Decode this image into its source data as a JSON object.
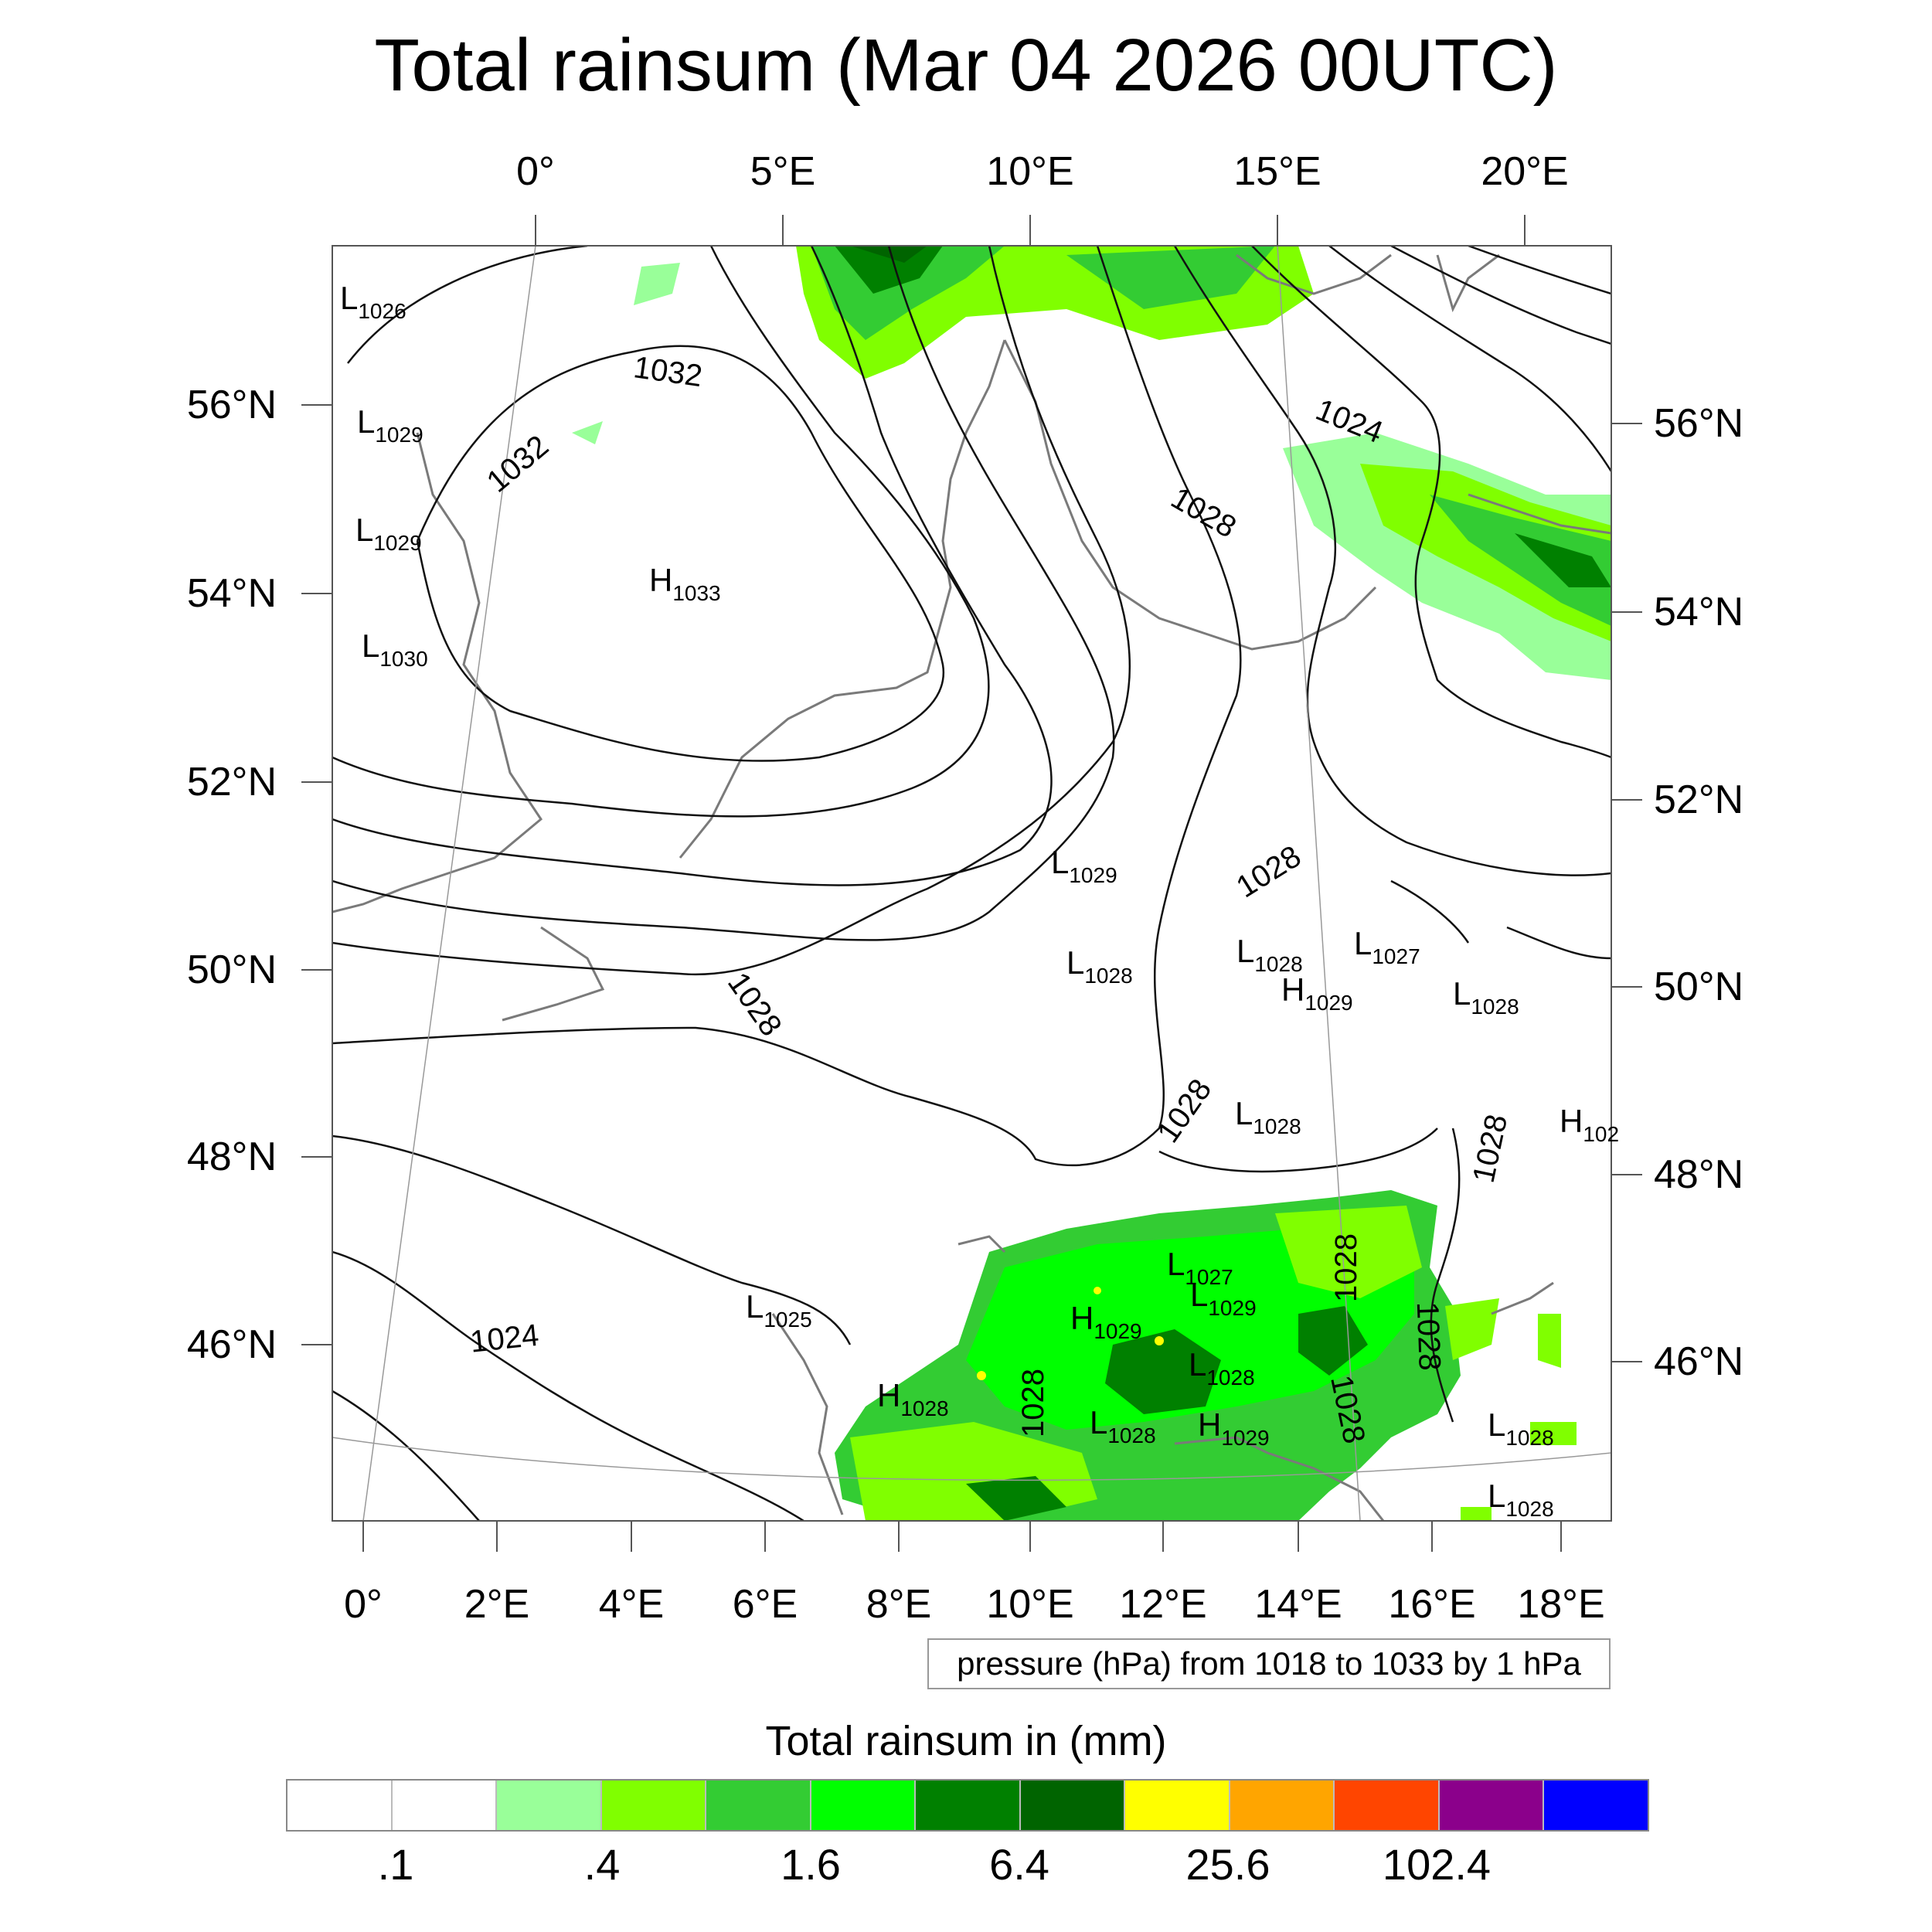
{
  "title": "Total rainsum (Mar 04 2026 00UTC)",
  "top_lon_labels": [
    "0°",
    "5°E",
    "10°E",
    "15°E",
    "20°E"
  ],
  "bottom_lon_labels": [
    "0°",
    "2°E",
    "4°E",
    "6°E",
    "8°E",
    "10°E",
    "12°E",
    "14°E",
    "16°E",
    "18°E"
  ],
  "left_lat_labels": [
    "56°N",
    "54°N",
    "52°N",
    "50°N",
    "48°N",
    "46°N"
  ],
  "right_lat_labels": [
    "56°N",
    "54°N",
    "52°N",
    "50°N",
    "48°N",
    "46°N"
  ],
  "contour_info": "pressure (hPa) from 1018 to 1033 by 1 hPa",
  "colorbar": {
    "title": "Total rainsum in (mm)",
    "labels": [
      ".1",
      ".4",
      "1.6",
      "6.4",
      "25.6",
      "102.4"
    ],
    "colors": [
      "#ffffff",
      "#ffffff",
      "#99ff99",
      "#80ff00",
      "#33cc33",
      "#00ff00",
      "#008000",
      "#006400",
      "#ffff00",
      "#ffa500",
      "#ff4500",
      "#8b008b",
      "#0000ff"
    ]
  },
  "isobar_labels": [
    "1032",
    "1032",
    "1028",
    "1024",
    "1028",
    "1028",
    "1028",
    "1028",
    "1028",
    "1024",
    "1028",
    "1028",
    "1028"
  ],
  "pressure_centers": [
    {
      "type": "L",
      "value": "1026"
    },
    {
      "type": "L",
      "value": "1029"
    },
    {
      "type": "L",
      "value": "1029"
    },
    {
      "type": "L",
      "value": "1030"
    },
    {
      "type": "H",
      "value": "1033"
    },
    {
      "type": "L",
      "value": "1029"
    },
    {
      "type": "L",
      "value": "1028"
    },
    {
      "type": "L",
      "value": "1028"
    },
    {
      "type": "H",
      "value": "1029"
    },
    {
      "type": "L",
      "value": "1027"
    },
    {
      "type": "L",
      "value": "1028"
    },
    {
      "type": "L",
      "value": "1028"
    },
    {
      "type": "H",
      "value": "102"
    },
    {
      "type": "L",
      "value": "1027"
    },
    {
      "type": "L",
      "value": "1029"
    },
    {
      "type": "H",
      "value": "1029"
    },
    {
      "type": "L",
      "value": "1028"
    },
    {
      "type": "L",
      "value": "1025"
    },
    {
      "type": "H",
      "value": "1028"
    },
    {
      "type": "L",
      "value": "1028"
    },
    {
      "type": "H",
      "value": "1029"
    },
    {
      "type": "L",
      "value": "1028"
    },
    {
      "type": "L",
      "value": "1028"
    }
  ]
}
